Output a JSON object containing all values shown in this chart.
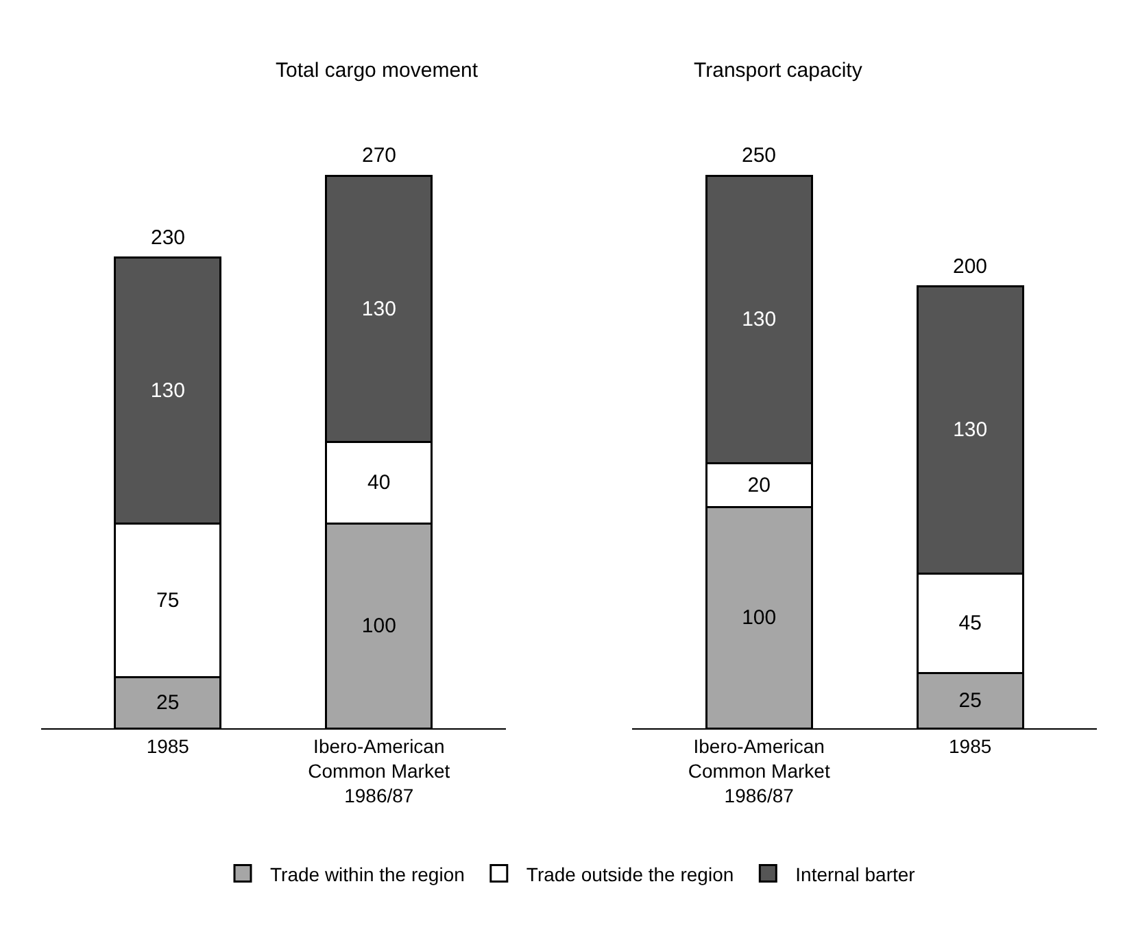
{
  "chart_data": [
    {
      "type": "bar",
      "title": "Total cargo movement",
      "stacked": true,
      "data_labels": true,
      "legend": "bottom",
      "categories": [
        "1985",
        "Ibero-American Common Market 1986/87"
      ],
      "series": [
        {
          "name": "Trade within the region",
          "color": "#a6a6a6",
          "values": [
            25,
            100
          ]
        },
        {
          "name": "Trade outside the region",
          "color": "#ffffff",
          "values": [
            75,
            40
          ]
        },
        {
          "name": "Internal barter",
          "color": "#555555",
          "values": [
            130,
            130
          ]
        }
      ],
      "totals": [
        "230",
        "270"
      ]
    },
    {
      "type": "bar",
      "title": "Transport capacity",
      "stacked": true,
      "data_labels": true,
      "categories": [
        "Ibero-American Common Market 1986/87",
        "1985"
      ],
      "series": [
        {
          "color": "#a6a6a6",
          "values": [
            100,
            25
          ]
        },
        {
          "color": "#ffffff",
          "values": [
            20,
            45
          ]
        },
        {
          "color": "#555555",
          "values": [
            130,
            130
          ]
        }
      ],
      "totals": [
        "250",
        "200"
      ]
    }
  ]
}
